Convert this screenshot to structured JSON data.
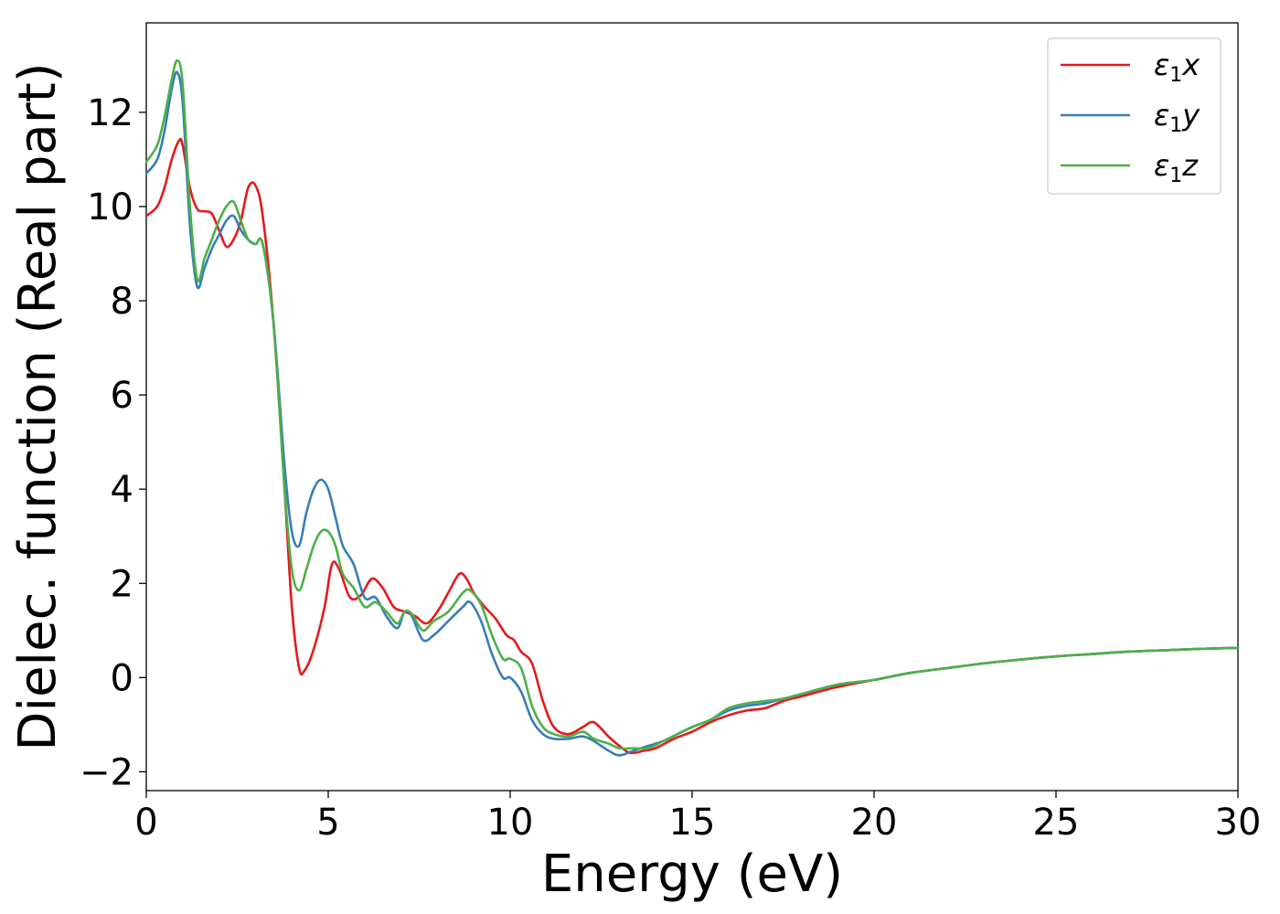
{
  "chart_data": {
    "type": "line",
    "xlabel": "Energy (eV)",
    "ylabel": "Dielec. function (Real part)",
    "xlim": [
      0,
      30
    ],
    "ylim": [
      -2.4,
      13.9
    ],
    "xticks": [
      0,
      5,
      10,
      15,
      20,
      25,
      30
    ],
    "xtick_labels": [
      "0",
      "5",
      "10",
      "15",
      "20",
      "25",
      "30"
    ],
    "yticks": [
      -2,
      0,
      2,
      4,
      6,
      8,
      10,
      12
    ],
    "ytick_labels": [
      "−2",
      "0",
      "2",
      "4",
      "6",
      "8",
      "10",
      "12"
    ],
    "grid": false,
    "legend_position": "top-right",
    "series": [
      {
        "name": "ε₁x",
        "legend": {
          "base": "ε",
          "sub": "1",
          "var": "x"
        },
        "color": "#e41a1c",
        "x": [
          0,
          0.3,
          0.5,
          0.7,
          0.9,
          1.0,
          1.2,
          1.4,
          1.6,
          1.8,
          2.0,
          2.2,
          2.4,
          2.6,
          2.8,
          3.0,
          3.2,
          3.5,
          3.8,
          4.0,
          4.2,
          4.35,
          4.6,
          4.9,
          5.1,
          5.3,
          5.6,
          5.9,
          6.2,
          6.5,
          6.8,
          7.1,
          7.4,
          7.7,
          8.0,
          8.3,
          8.6,
          8.8,
          9.0,
          9.3,
          9.6,
          9.9,
          10.1,
          10.3,
          10.6,
          10.9,
          11.2,
          11.6,
          12.0,
          12.3,
          12.7,
          13.0,
          13.3,
          13.7,
          14.0,
          14.5,
          15.0,
          15.5,
          16.0,
          16.5,
          17.0,
          17.5,
          18.0,
          19.0,
          20.0,
          21.0,
          22.0,
          23.0,
          24.0,
          25.0,
          26.0,
          27.0,
          28.0,
          29.0,
          30.0
        ],
        "values": [
          9.8,
          10.0,
          10.4,
          11.0,
          11.4,
          11.3,
          10.4,
          9.95,
          9.9,
          9.85,
          9.5,
          9.15,
          9.3,
          9.7,
          10.4,
          10.45,
          9.8,
          7.5,
          4.0,
          1.5,
          0.2,
          0.15,
          0.6,
          1.5,
          2.4,
          2.3,
          1.7,
          1.75,
          2.1,
          1.9,
          1.5,
          1.4,
          1.3,
          1.15,
          1.4,
          1.8,
          2.2,
          2.1,
          1.8,
          1.5,
          1.25,
          0.9,
          0.8,
          0.55,
          0.3,
          -0.5,
          -1.05,
          -1.2,
          -1.05,
          -0.95,
          -1.25,
          -1.45,
          -1.6,
          -1.55,
          -1.5,
          -1.3,
          -1.15,
          -0.95,
          -0.8,
          -0.7,
          -0.65,
          -0.5,
          -0.4,
          -0.2,
          -0.05,
          0.1,
          0.2,
          0.3,
          0.38,
          0.45,
          0.5,
          0.55,
          0.58,
          0.61,
          0.63
        ]
      },
      {
        "name": "ε₁y",
        "legend": {
          "base": "ε",
          "sub": "1",
          "var": "y"
        },
        "color": "#377eb8",
        "x": [
          0,
          0.3,
          0.5,
          0.7,
          0.85,
          1.0,
          1.2,
          1.4,
          1.6,
          1.8,
          2.0,
          2.2,
          2.4,
          2.6,
          2.8,
          3.0,
          3.2,
          3.5,
          3.8,
          4.0,
          4.2,
          4.4,
          4.6,
          4.8,
          5.0,
          5.2,
          5.4,
          5.7,
          6.0,
          6.3,
          6.6,
          6.9,
          7.1,
          7.3,
          7.6,
          7.9,
          8.3,
          8.7,
          8.9,
          9.2,
          9.5,
          9.8,
          10.0,
          10.3,
          10.6,
          10.9,
          11.2,
          11.6,
          12.0,
          12.3,
          12.7,
          13.0,
          13.4,
          13.8,
          14.2,
          14.6,
          15.0,
          15.5,
          16.0,
          16.5,
          17.0,
          17.5,
          18.0,
          19.0,
          20.0,
          21.0,
          22.0,
          23.0,
          24.0,
          25.0,
          26.0,
          27.0,
          28.0,
          29.0,
          30.0
        ],
        "values": [
          10.7,
          11.0,
          11.6,
          12.5,
          12.85,
          12.2,
          9.6,
          8.3,
          8.7,
          9.1,
          9.4,
          9.7,
          9.8,
          9.5,
          9.3,
          9.2,
          9.2,
          7.5,
          4.5,
          3.1,
          2.8,
          3.5,
          4.0,
          4.2,
          4.0,
          3.4,
          2.8,
          2.4,
          1.7,
          1.7,
          1.3,
          1.05,
          1.4,
          1.3,
          0.8,
          0.9,
          1.2,
          1.5,
          1.6,
          1.2,
          0.5,
          0.0,
          0.0,
          -0.3,
          -0.9,
          -1.2,
          -1.3,
          -1.3,
          -1.25,
          -1.35,
          -1.55,
          -1.65,
          -1.55,
          -1.45,
          -1.35,
          -1.2,
          -1.05,
          -0.9,
          -0.7,
          -0.6,
          -0.55,
          -0.45,
          -0.35,
          -0.15,
          -0.05,
          0.1,
          0.2,
          0.3,
          0.38,
          0.45,
          0.5,
          0.55,
          0.58,
          0.61,
          0.63
        ]
      },
      {
        "name": "ε₁z",
        "legend": {
          "base": "ε",
          "sub": "1",
          "var": "z"
        },
        "color": "#4daf4a",
        "x": [
          0,
          0.3,
          0.5,
          0.7,
          0.85,
          1.0,
          1.2,
          1.4,
          1.6,
          1.8,
          2.0,
          2.2,
          2.4,
          2.6,
          2.8,
          3.0,
          3.2,
          3.5,
          3.8,
          4.0,
          4.2,
          4.4,
          4.6,
          4.8,
          5.0,
          5.2,
          5.4,
          5.7,
          6.0,
          6.3,
          6.6,
          6.9,
          7.1,
          7.3,
          7.6,
          7.9,
          8.3,
          8.7,
          8.9,
          9.2,
          9.5,
          9.8,
          10.0,
          10.3,
          10.6,
          10.9,
          11.2,
          11.6,
          12.0,
          12.3,
          12.7,
          13.0,
          13.4,
          13.8,
          14.2,
          14.6,
          15.0,
          15.5,
          16.0,
          16.5,
          17.0,
          17.5,
          18.0,
          19.0,
          20.0,
          21.0,
          22.0,
          23.0,
          24.0,
          25.0,
          26.0,
          27.0,
          28.0,
          29.0,
          30.0
        ],
        "values": [
          10.95,
          11.3,
          11.9,
          12.7,
          13.1,
          12.6,
          10.0,
          8.45,
          8.9,
          9.3,
          9.7,
          10.0,
          10.1,
          9.7,
          9.3,
          9.2,
          9.2,
          7.5,
          4.0,
          2.3,
          1.85,
          2.3,
          2.8,
          3.1,
          3.1,
          2.8,
          2.2,
          1.9,
          1.5,
          1.6,
          1.4,
          1.15,
          1.4,
          1.35,
          1.0,
          1.2,
          1.4,
          1.8,
          1.85,
          1.55,
          0.9,
          0.4,
          0.4,
          0.2,
          -0.6,
          -1.05,
          -1.2,
          -1.25,
          -1.15,
          -1.3,
          -1.4,
          -1.5,
          -1.5,
          -1.5,
          -1.35,
          -1.2,
          -1.05,
          -0.9,
          -0.65,
          -0.55,
          -0.5,
          -0.45,
          -0.35,
          -0.15,
          -0.05,
          0.1,
          0.2,
          0.3,
          0.38,
          0.45,
          0.5,
          0.55,
          0.58,
          0.61,
          0.63
        ]
      }
    ]
  }
}
